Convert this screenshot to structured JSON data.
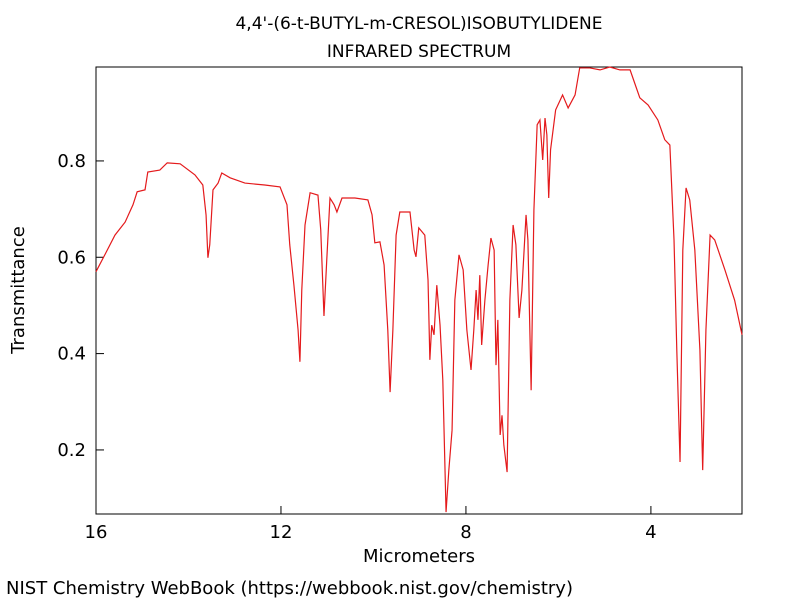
{
  "chart_data": {
    "type": "line",
    "title": "4,4'-(6-t-BUTYL-m-CRESOL)ISOBUTYLIDENE",
    "subtitle": "INFRARED SPECTRUM",
    "x_label": "Micrometers",
    "y_label": "Transmittance",
    "source": "NIST Chemistry WebBook (https://webbook.nist.gov/chemistry)",
    "xlim": [
      16,
      2.03
    ],
    "ylim": [
      0.067,
      0.995
    ],
    "xticks": [
      16,
      12,
      8,
      4
    ],
    "yticks": [
      0.2,
      0.4,
      0.6,
      0.8
    ],
    "x": [
      16,
      15.81,
      15.59,
      15.37,
      15.2,
      15.11,
      14.94,
      14.88,
      14.62,
      14.46,
      14.18,
      13.86,
      13.69,
      13.62,
      13.58,
      13.54,
      13.47,
      13.36,
      13.28,
      13.1,
      12.78,
      12.35,
      12.02,
      11.87,
      11.81,
      11.72,
      11.63,
      11.59,
      11.55,
      11.48,
      11.37,
      11.2,
      11.14,
      11.07,
      11.01,
      10.94,
      10.85,
      10.79,
      10.68,
      10.4,
      10.12,
      10.03,
      9.97,
      9.86,
      9.77,
      9.69,
      9.64,
      9.58,
      9.51,
      9.43,
      9.21,
      9.12,
      9.08,
      9.02,
      8.89,
      8.82,
      8.78,
      8.74,
      8.69,
      8.63,
      8.56,
      8.5,
      8.43,
      8.37,
      8.3,
      8.24,
      8.15,
      8.06,
      7.98,
      7.89,
      7.83,
      7.78,
      7.74,
      7.7,
      7.66,
      7.59,
      7.52,
      7.46,
      7.39,
      7.35,
      7.31,
      7.26,
      7.22,
      7.18,
      7.11,
      7.05,
      6.98,
      6.92,
      6.85,
      6.79,
      6.7,
      6.66,
      6.59,
      6.53,
      6.46,
      6.4,
      6.34,
      6.29,
      6.25,
      6.21,
      6.17,
      6.06,
      5.91,
      5.79,
      5.64,
      5.54,
      5.32,
      5.1,
      4.89,
      4.67,
      4.45,
      4.24,
      4.06,
      3.85,
      3.7,
      3.59,
      3.5,
      3.44,
      3.37,
      3.31,
      3.24,
      3.16,
      3.05,
      2.94,
      2.88,
      2.81,
      2.72,
      2.62,
      2.4,
      2.19,
      2.03
    ],
    "series": [
      {
        "color": "#e41a1c",
        "values": [
          0.57,
          0.605,
          0.646,
          0.673,
          0.709,
          0.736,
          0.74,
          0.777,
          0.781,
          0.796,
          0.794,
          0.771,
          0.75,
          0.688,
          0.599,
          0.626,
          0.74,
          0.754,
          0.775,
          0.765,
          0.754,
          0.75,
          0.746,
          0.709,
          0.626,
          0.542,
          0.449,
          0.383,
          0.532,
          0.667,
          0.734,
          0.729,
          0.657,
          0.478,
          0.594,
          0.723,
          0.709,
          0.694,
          0.723,
          0.723,
          0.719,
          0.688,
          0.63,
          0.632,
          0.584,
          0.449,
          0.32,
          0.449,
          0.646,
          0.694,
          0.694,
          0.615,
          0.601,
          0.661,
          0.646,
          0.553,
          0.387,
          0.459,
          0.439,
          0.542,
          0.459,
          0.345,
          0.071,
          0.158,
          0.241,
          0.511,
          0.605,
          0.574,
          0.449,
          0.366,
          0.449,
          0.532,
          0.47,
          0.563,
          0.418,
          0.511,
          0.584,
          0.64,
          0.615,
          0.376,
          0.47,
          0.231,
          0.272,
          0.21,
          0.154,
          0.511,
          0.667,
          0.626,
          0.474,
          0.532,
          0.688,
          0.636,
          0.324,
          0.698,
          0.875,
          0.885,
          0.802,
          0.889,
          0.854,
          0.723,
          0.823,
          0.906,
          0.937,
          0.91,
          0.937,
          0.993,
          0.993,
          0.989,
          0.995,
          0.989,
          0.989,
          0.931,
          0.916,
          0.885,
          0.844,
          0.833,
          0.636,
          0.407,
          0.175,
          0.615,
          0.744,
          0.719,
          0.615,
          0.407,
          0.158,
          0.449,
          0.646,
          0.636,
          0.574,
          0.511,
          0.439
        ]
      }
    ]
  }
}
